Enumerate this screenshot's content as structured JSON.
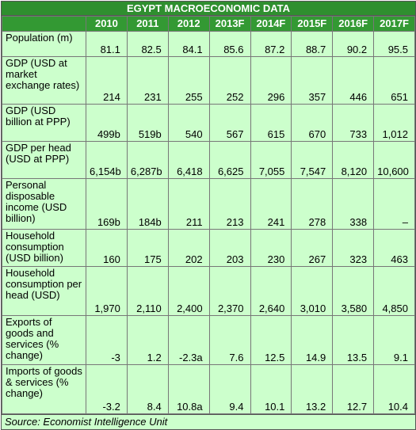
{
  "title": "EGYPT MACROECONOMIC  DATA",
  "table": {
    "header": [
      "2010",
      "2011",
      "2012",
      "2013F",
      "2014F",
      "2015F",
      "2016F",
      "2017F"
    ],
    "rows": [
      {
        "label": "Population (m)",
        "cells": [
          "81.1",
          "82.5",
          "84.1",
          "85.6",
          "87.2",
          "88.7",
          "90.2",
          "95.5"
        ]
      },
      {
        "label": "GDP (USD at market exchange rates)",
        "cells": [
          "214",
          "231",
          "255",
          "252",
          "296",
          "357",
          "446",
          "651"
        ]
      },
      {
        "label": "GDP (USD billion at PPP)",
        "cells": [
          "499b",
          "519b",
          "540",
          "567",
          "615",
          "670",
          "733",
          "1,012"
        ]
      },
      {
        "label": "GDP per head (USD at PPP)",
        "cells": [
          "6,154b",
          "6,287b",
          "6,418",
          "6,625",
          "7,055",
          "7,547",
          "8,120",
          "10,600"
        ]
      },
      {
        "label": "Personal disposable income (USD billion)",
        "cells": [
          "169b",
          "184b",
          "211",
          "213",
          "241",
          "278",
          "338",
          "–"
        ]
      },
      {
        "label": "Household consumption (USD billion)",
        "cells": [
          "160",
          "175",
          "202",
          "203",
          "230",
          "267",
          "323",
          "463"
        ]
      },
      {
        "label": "Household consumption per head (USD)",
        "cells": [
          "1,970",
          "2,110",
          "2,400",
          "2,370",
          "2,640",
          "3,010",
          "3,580",
          "4,850"
        ]
      },
      {
        "label": "Exports of goods and services (% change)",
        "cells": [
          "-3",
          "1.2",
          "-2.3a",
          "7.6",
          "12.5",
          "14.9",
          "13.5",
          "9.1"
        ]
      },
      {
        "label": "Imports of goods & services (% change)",
        "cells": [
          "-3.2",
          "8.4",
          "10.8a",
          "9.4",
          "10.1",
          "13.2",
          "12.7",
          "10.4"
        ]
      }
    ]
  },
  "source": "Source: Economist Intelligence Unit"
}
